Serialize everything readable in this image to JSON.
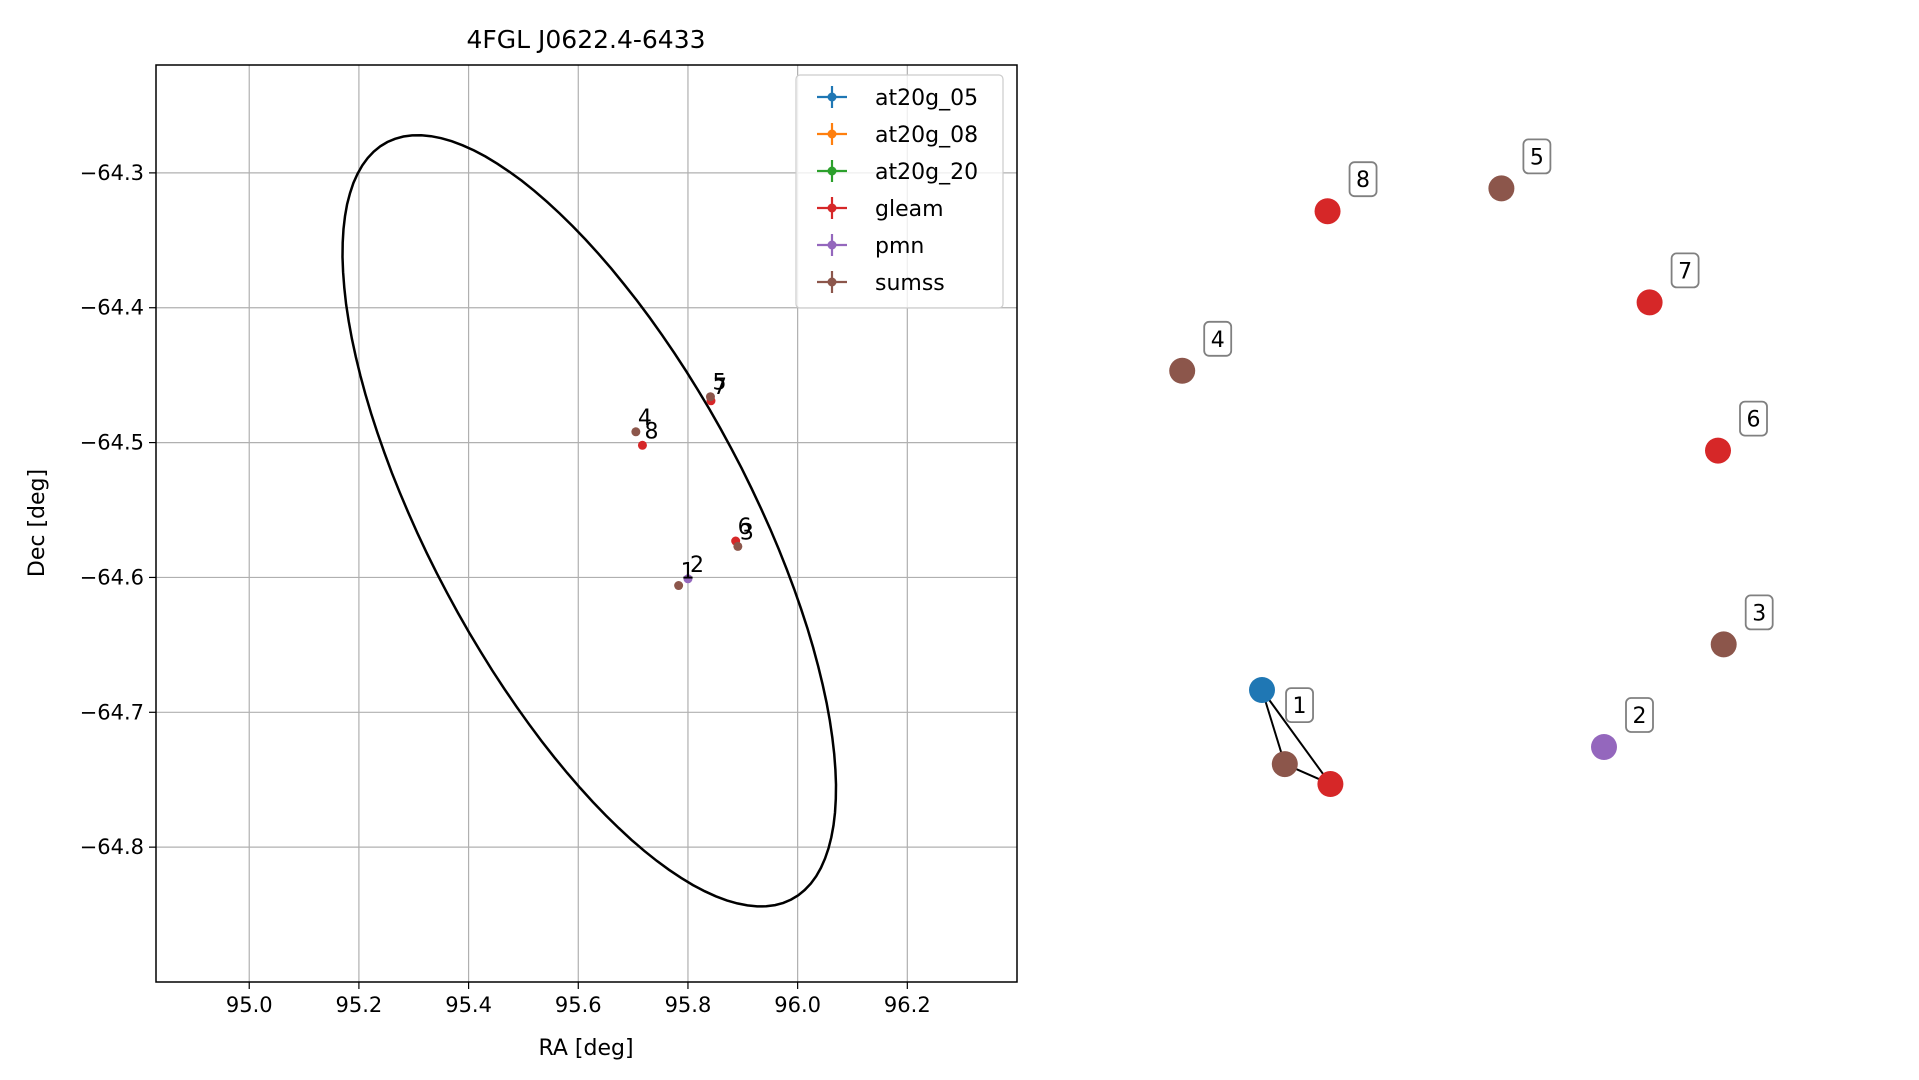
{
  "chart_data": [
    {
      "type": "scatter",
      "title": "4FGL J0622.4-6433",
      "xlabel": "RA [deg]",
      "ylabel": "Dec [deg]",
      "xlim": [
        94.83,
        96.4
      ],
      "ylim": [
        -64.9,
        -64.22
      ],
      "x_ticks": [
        95.0,
        95.2,
        95.4,
        95.6,
        95.8,
        96.0,
        96.2
      ],
      "x_tick_labels": [
        "95.0",
        "95.2",
        "95.4",
        "95.6",
        "95.8",
        "96.0",
        "96.2"
      ],
      "y_ticks": [
        -64.3,
        -64.4,
        -64.5,
        -64.6,
        -64.7,
        -64.8
      ],
      "y_tick_labels": [
        "−64.3",
        "−64.4",
        "−64.5",
        "−64.6",
        "−64.7",
        "−64.8"
      ],
      "grid": true,
      "legend_position": "top-right",
      "series": [
        {
          "name": "at20g_05",
          "color": "#1f77b4",
          "points": []
        },
        {
          "name": "at20g_08",
          "color": "#ff7f0e",
          "points": []
        },
        {
          "name": "at20g_20",
          "color": "#2ca02c",
          "points": []
        },
        {
          "name": "gleam",
          "color": "#d62728",
          "points": [
            {
              "x": 95.717,
              "y": -64.502,
              "label": "8"
            },
            {
              "x": 95.842,
              "y": -64.469,
              "label": "7"
            },
            {
              "x": 95.887,
              "y": -64.573,
              "label": "6"
            }
          ]
        },
        {
          "name": "pmn",
          "color": "#9467bd",
          "points": [
            {
              "x": 95.8,
              "y": -64.601,
              "label": "2"
            }
          ]
        },
        {
          "name": "sumss",
          "color": "#8c564b",
          "points": [
            {
              "x": 95.705,
              "y": -64.492,
              "label": "4"
            },
            {
              "x": 95.841,
              "y": -64.466,
              "label": "5"
            },
            {
              "x": 95.891,
              "y": -64.577,
              "label": "3"
            },
            {
              "x": 95.783,
              "y": -64.606,
              "label": "1"
            }
          ]
        }
      ],
      "ellipse": {
        "center_ra": 95.62,
        "center_dec": -64.558,
        "semi_major": 0.5,
        "semi_minor": 0.185,
        "angle_deg": -28
      }
    },
    {
      "type": "network",
      "nodes": [
        {
          "label": "",
          "color": "#1f77b4",
          "x": 0.0,
          "y": 0.0
        },
        {
          "label": "",
          "color": "#8c564b",
          "x": 0.04,
          "y": -0.13
        },
        {
          "label": "",
          "color": "#d62728",
          "x": 0.12,
          "y": -0.165
        },
        {
          "label": "1",
          "color": "",
          "x": 0.065,
          "y": -0.03
        },
        {
          "label": "2",
          "color": "#9467bd",
          "x": 0.6,
          "y": -0.1
        },
        {
          "label": "3",
          "color": "#8c564b",
          "x": 0.81,
          "y": 0.08
        },
        {
          "label": "4",
          "color": "#8c564b",
          "x": -0.14,
          "y": 0.56
        },
        {
          "label": "5",
          "color": "#8c564b",
          "x": 0.42,
          "y": 0.88
        },
        {
          "label": "6",
          "color": "#d62728",
          "x": 0.8,
          "y": 0.42
        },
        {
          "label": "7",
          "color": "#d62728",
          "x": 0.68,
          "y": 0.68
        },
        {
          "label": "8",
          "color": "#d62728",
          "x": 0.115,
          "y": 0.84
        }
      ],
      "edges": [
        [
          0,
          1
        ],
        [
          0,
          2
        ],
        [
          1,
          2
        ]
      ]
    }
  ]
}
